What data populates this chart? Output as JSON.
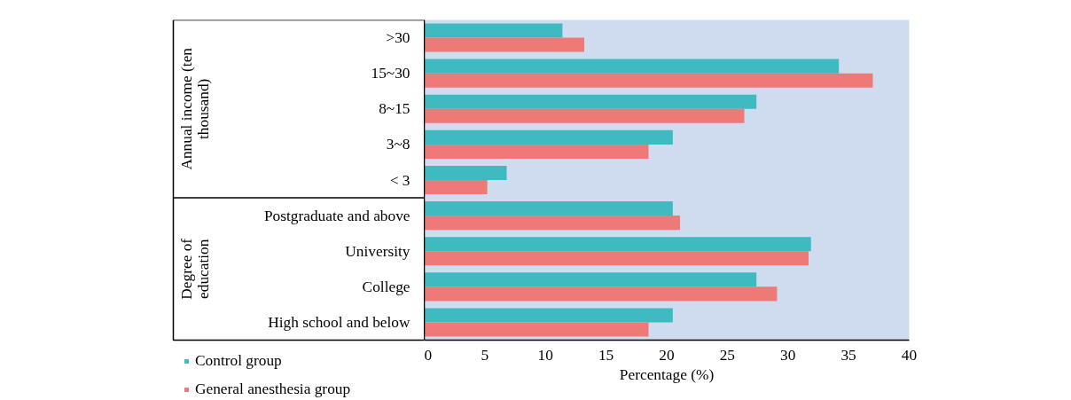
{
  "chart_data": {
    "type": "bar",
    "orientation": "horizontal",
    "xlabel": "Percentage (%)",
    "categories": [
      ">30",
      "15~30",
      "8~15",
      "3~8",
      "< 3",
      "Postgraduate and above",
      "University",
      "College",
      "High school and below"
    ],
    "series": [
      {
        "name": "Control group",
        "color": "#3ebac0",
        "values": [
          11.4,
          34.2,
          27.4,
          20.5,
          6.8,
          20.5,
          31.9,
          27.4,
          20.5
        ]
      },
      {
        "name": "General anesthesia group",
        "color": "#ee7a78",
        "values": [
          13.2,
          37.0,
          26.4,
          18.5,
          5.2,
          21.1,
          31.7,
          29.1,
          18.5
        ]
      }
    ],
    "annotations": [
      "Annual income (ten thousand)",
      "Degree of education"
    ],
    "xlim": [
      0,
      40
    ],
    "xticks": [
      0,
      5,
      10,
      15,
      20,
      25,
      30,
      35,
      40
    ],
    "grid": false,
    "legend": "bottom left"
  }
}
